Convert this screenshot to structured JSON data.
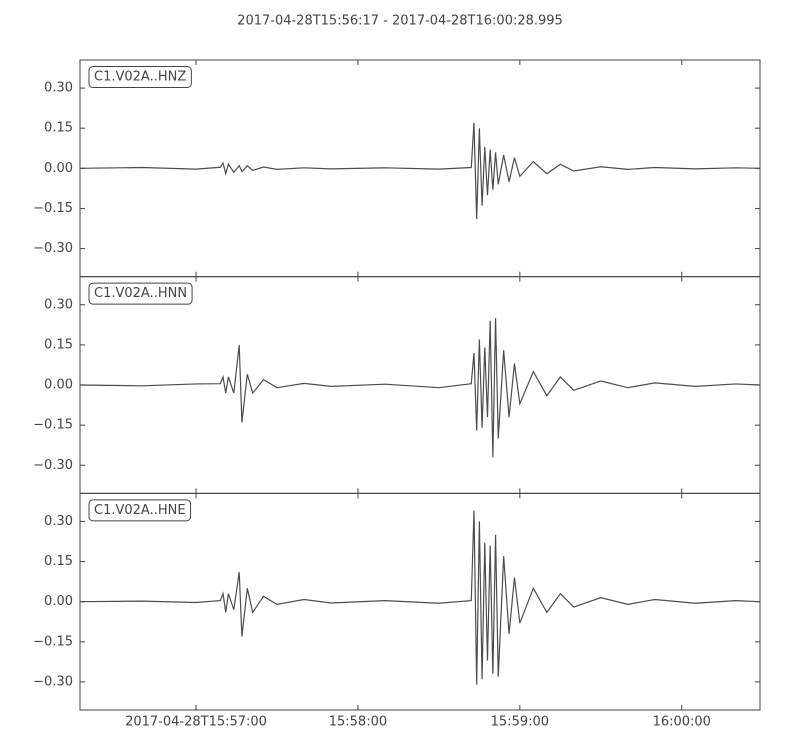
{
  "chart_data": {
    "type": "line",
    "layout": "stacked",
    "title": "2017-04-28T15:56:17  -  2017-04-28T16:00:28.995",
    "x": [
      "2017-04-28T15:56:17",
      "2017-04-28T15:56:40",
      "2017-04-28T15:57:00",
      "2017-04-28T15:57:09",
      "2017-04-28T15:57:10",
      "2017-04-28T15:57:11",
      "2017-04-28T15:57:12",
      "2017-04-28T15:57:14",
      "2017-04-28T15:57:16",
      "2017-04-28T15:57:17",
      "2017-04-28T15:57:19",
      "2017-04-28T15:57:21",
      "2017-04-28T15:57:25",
      "2017-04-28T15:57:30",
      "2017-04-28T15:57:40",
      "2017-04-28T15:57:50",
      "2017-04-28T15:58:10",
      "2017-04-28T15:58:30",
      "2017-04-28T15:58:42",
      "2017-04-28T15:58:43",
      "2017-04-28T15:58:44",
      "2017-04-28T15:58:45",
      "2017-04-28T15:58:46",
      "2017-04-28T15:58:47",
      "2017-04-28T15:58:48",
      "2017-04-28T15:58:49",
      "2017-04-28T15:58:50",
      "2017-04-28T15:58:51",
      "2017-04-28T15:58:52",
      "2017-04-28T15:58:54",
      "2017-04-28T15:58:56",
      "2017-04-28T15:58:58",
      "2017-04-28T15:59:00",
      "2017-04-28T15:59:05",
      "2017-04-28T15:59:10",
      "2017-04-28T15:59:15",
      "2017-04-28T15:59:20",
      "2017-04-28T15:59:30",
      "2017-04-28T15:59:40",
      "2017-04-28T15:59:50",
      "2017-04-28T16:00:05",
      "2017-04-28T16:00:20",
      "2017-04-28T16:00:28.995"
    ],
    "series": [
      {
        "name": "C1.V02A..HNZ",
        "color": "#4d4d4d",
        "values": [
          0,
          0.003,
          -0.003,
          0.004,
          0.02,
          -0.02,
          0.015,
          -0.015,
          0.01,
          -0.012,
          0.01,
          -0.008,
          0.005,
          -0.004,
          0.002,
          -0.002,
          0.002,
          -0.003,
          0.003,
          0.17,
          -0.19,
          0.15,
          -0.14,
          0.08,
          -0.1,
          0.07,
          -0.08,
          0.06,
          -0.06,
          0.05,
          -0.05,
          0.04,
          -0.03,
          0.025,
          -0.02,
          0.015,
          -0.01,
          0.006,
          -0.004,
          0.003,
          -0.002,
          0.002,
          0
        ]
      },
      {
        "name": "C1.V02A..HNN",
        "color": "#4d4d4d",
        "values": [
          0,
          -0.003,
          0.004,
          0.005,
          0.03,
          -0.03,
          0.03,
          -0.03,
          0.15,
          -0.14,
          0.04,
          -0.03,
          0.02,
          -0.01,
          0.006,
          -0.005,
          0.003,
          -0.01,
          0.005,
          0.12,
          -0.17,
          0.17,
          -0.16,
          0.14,
          -0.12,
          0.24,
          -0.27,
          0.25,
          -0.2,
          0.13,
          -0.12,
          0.08,
          -0.07,
          0.05,
          -0.04,
          0.03,
          -0.02,
          0.015,
          -0.01,
          0.008,
          -0.005,
          0.004,
          0
        ]
      },
      {
        "name": "C1.V02A..HNE",
        "color": "#4d4d4d",
        "values": [
          0,
          0.002,
          -0.003,
          0.004,
          0.03,
          -0.04,
          0.03,
          -0.03,
          0.11,
          -0.13,
          0.05,
          -0.04,
          0.02,
          -0.01,
          0.008,
          -0.005,
          0.004,
          -0.006,
          0.004,
          0.34,
          -0.31,
          0.3,
          -0.29,
          0.22,
          -0.22,
          0.21,
          -0.27,
          0.25,
          -0.28,
          0.17,
          -0.12,
          0.09,
          -0.08,
          0.05,
          -0.04,
          0.03,
          -0.02,
          0.015,
          -0.01,
          0.008,
          -0.006,
          0.004,
          0
        ]
      }
    ],
    "xlim": [
      "2017-04-28T15:56:17",
      "2017-04-28T16:00:28.995"
    ],
    "xticks": [
      "2017-04-28T15:57:00",
      {
        "value": "2017-04-28T15:58:00",
        "label": "15:58:00"
      },
      {
        "value": "2017-04-28T15:59:00",
        "label": "15:59:00"
      },
      {
        "value": "2017-04-28T16:00:00",
        "label": "16:00:00"
      }
    ],
    "ylim": [
      -0.405,
      0.405
    ],
    "yticks": [
      {
        "value": 0.3,
        "label": "0.30"
      },
      {
        "value": 0.15,
        "label": "0.15"
      },
      {
        "value": 0,
        "label": "0.00"
      },
      {
        "value": -0.15,
        "label": "−0.15"
      },
      {
        "value": -0.3,
        "label": "−0.30"
      }
    ]
  }
}
